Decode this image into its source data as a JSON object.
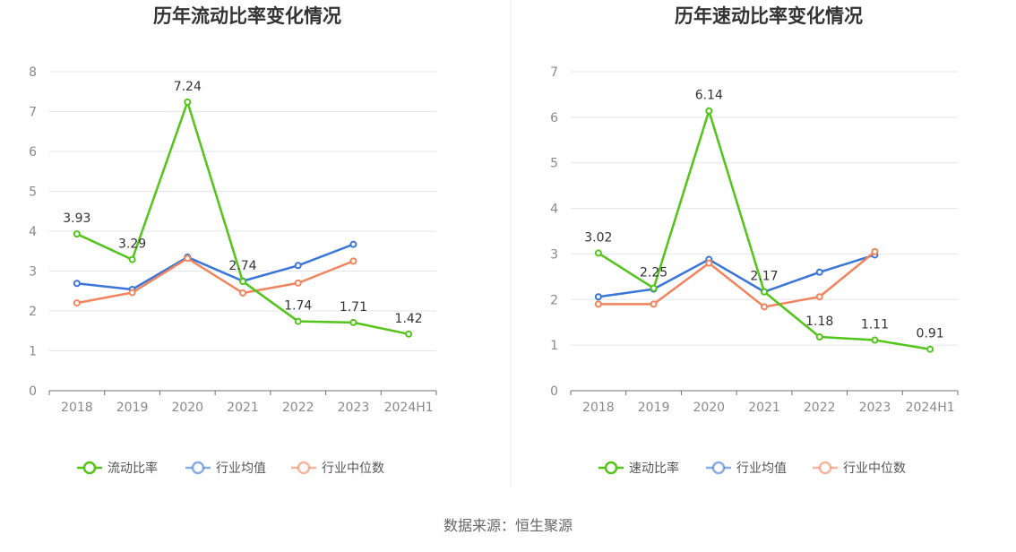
{
  "source_text": "数据来源：恒生聚源",
  "colors": {
    "primary": "#52c41a",
    "avg": "#3a75d8",
    "median": "#f0845c"
  },
  "chart_data": [
    {
      "type": "line",
      "title": "历年流动比率变化情况",
      "categories": [
        "2018",
        "2019",
        "2020",
        "2021",
        "2022",
        "2023",
        "2024H1"
      ],
      "ylim": [
        0,
        8
      ],
      "yticks": [
        0,
        1,
        2,
        3,
        4,
        5,
        6,
        7,
        8
      ],
      "grid": true,
      "legend_position": "bottom",
      "series": [
        {
          "name": "流动比率",
          "values": [
            3.93,
            3.29,
            7.24,
            2.74,
            1.74,
            1.71,
            1.42
          ],
          "labels": true
        },
        {
          "name": "行业均值",
          "values": [
            2.69,
            2.54,
            3.35,
            2.75,
            3.14,
            3.67,
            null
          ],
          "labels": false
        },
        {
          "name": "行业中位数",
          "values": [
            2.2,
            2.46,
            3.32,
            2.45,
            2.7,
            3.25,
            null
          ],
          "labels": false
        }
      ]
    },
    {
      "type": "line",
      "title": "历年速动比率变化情况",
      "categories": [
        "2018",
        "2019",
        "2020",
        "2021",
        "2022",
        "2023",
        "2024H1"
      ],
      "ylim": [
        0,
        7
      ],
      "yticks": [
        0,
        1,
        2,
        3,
        4,
        5,
        6,
        7
      ],
      "grid": true,
      "legend_position": "bottom",
      "series": [
        {
          "name": "速动比率",
          "values": [
            3.02,
            2.25,
            6.14,
            2.17,
            1.18,
            1.11,
            0.91
          ],
          "labels": true
        },
        {
          "name": "行业均值",
          "values": [
            2.06,
            2.23,
            2.88,
            2.17,
            2.6,
            2.98,
            null
          ],
          "labels": false
        },
        {
          "name": "行业中位数",
          "values": [
            1.9,
            1.9,
            2.8,
            1.84,
            2.06,
            3.05,
            null
          ],
          "labels": false
        }
      ]
    }
  ]
}
